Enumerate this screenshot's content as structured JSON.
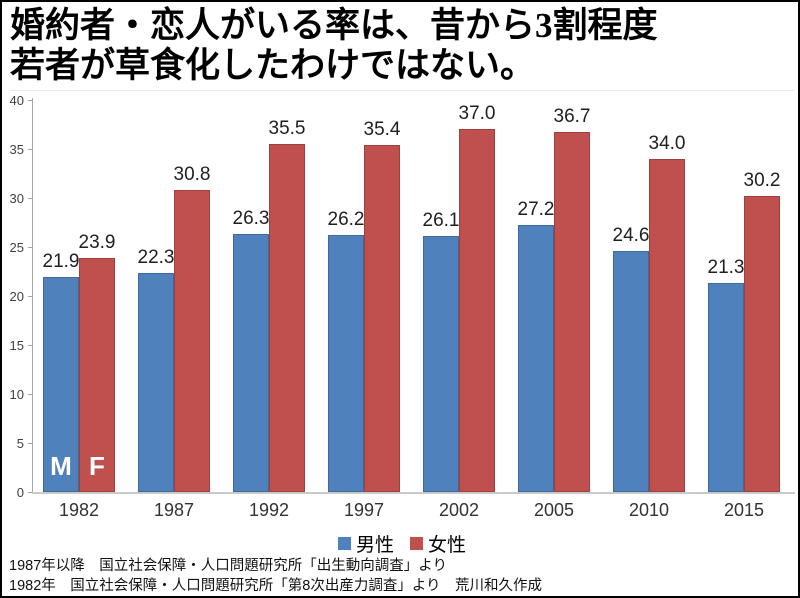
{
  "title": {
    "line1": "婚約者・恋人がいる率は、昔から3割程度",
    "line2": "若者が草食化したわけではない。"
  },
  "chart_data": {
    "type": "bar",
    "categories": [
      "1982",
      "1987",
      "1992",
      "1997",
      "2002",
      "2005",
      "2010",
      "2015"
    ],
    "series": [
      {
        "name": "男性",
        "color": "#4F81BD",
        "values": [
          21.9,
          22.3,
          26.3,
          26.2,
          26.1,
          27.2,
          24.6,
          21.3
        ]
      },
      {
        "name": "女性",
        "color": "#C0504D",
        "values": [
          23.9,
          30.8,
          35.5,
          35.4,
          37.0,
          36.7,
          34.0,
          30.2
        ]
      }
    ],
    "ylim": [
      0,
      40
    ],
    "y_ticks": [
      0,
      5,
      10,
      15,
      20,
      25,
      30,
      35,
      40
    ],
    "grid": false,
    "value_labels": true,
    "legend_position": "bottom",
    "bar_annotations": [
      {
        "series_index": 0,
        "category_index": 0,
        "text": "M"
      },
      {
        "series_index": 1,
        "category_index": 0,
        "text": "F"
      }
    ]
  },
  "legend": {
    "items": [
      {
        "label": "男性",
        "color": "#4F81BD"
      },
      {
        "label": "女性",
        "color": "#C0504D"
      }
    ]
  },
  "footer": {
    "line1": "1987年以降　国立社会保障・人口問題研究所「出生動向調査」より",
    "line2": "1982年　国立社会保障・人口問題研究所「第8次出産力調査」より　荒川和久作成"
  }
}
